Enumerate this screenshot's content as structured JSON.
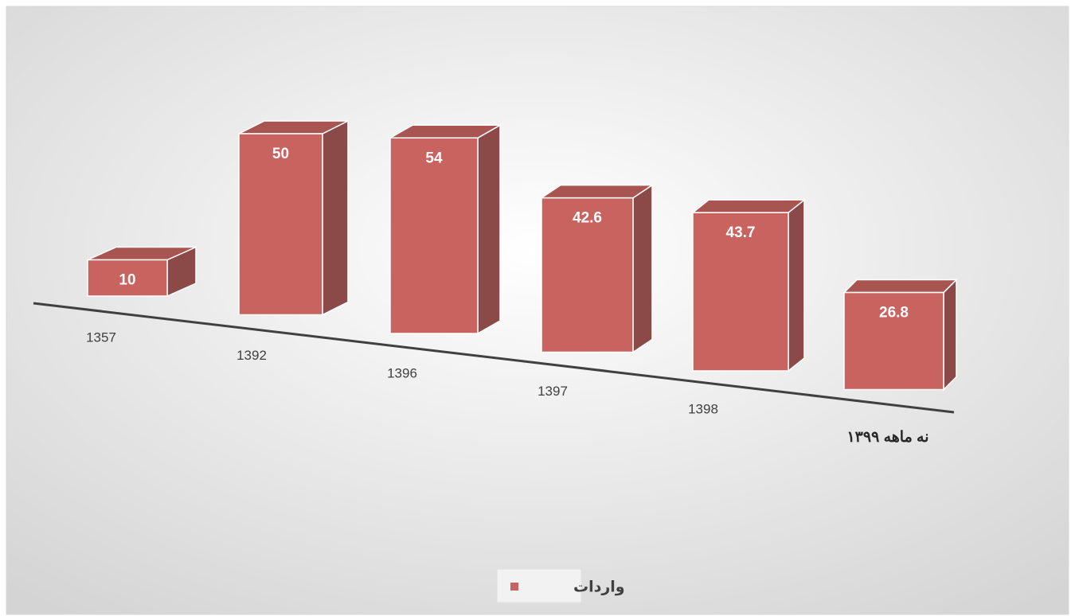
{
  "chart_data": {
    "type": "bar3d",
    "categories": [
      "1357",
      "1392",
      "1396",
      "1397",
      "1398",
      "نه ماهه ۱۳۹۹"
    ],
    "series": [
      {
        "name": "واردات",
        "color": "#c8635f",
        "values": [
          10,
          50,
          54,
          42.6,
          43.7,
          26.8
        ]
      }
    ],
    "legend": "bottom"
  }
}
